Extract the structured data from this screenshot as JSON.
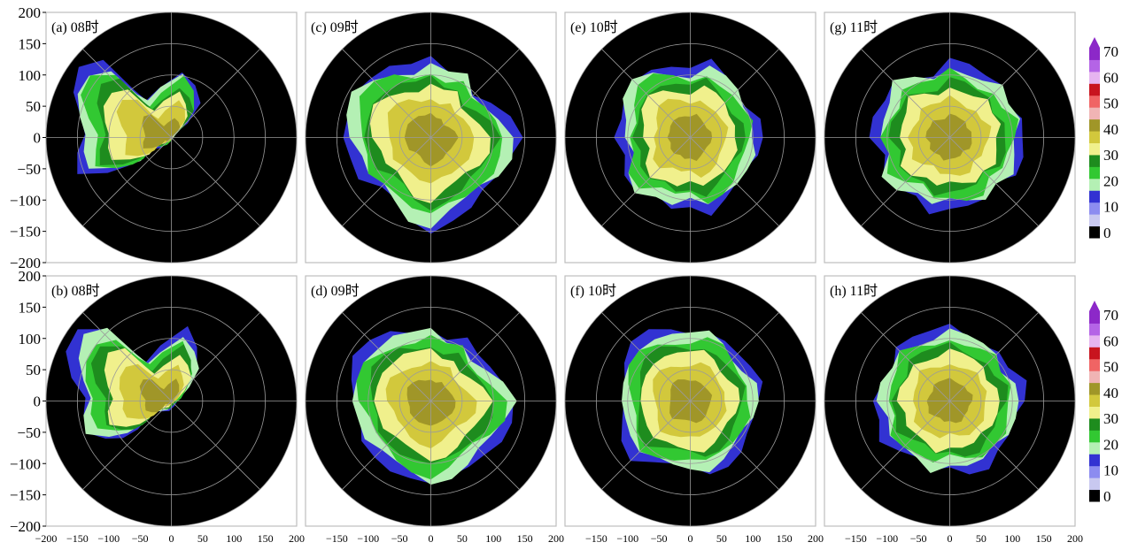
{
  "chart_data": {
    "type": "polar_radar_ppi",
    "rows": 2,
    "columns": 4,
    "axis_ticks": [
      "-200",
      "-150",
      "-100",
      "-50",
      "0",
      "50",
      "100",
      "150",
      "200"
    ],
    "y_ticks": [
      200,
      150,
      100,
      50,
      0,
      -50,
      -100,
      -150,
      -200
    ],
    "x_ticks": [
      -200,
      -150,
      -100,
      -50,
      0,
      50,
      100,
      150,
      200
    ],
    "axis_range": [
      -200,
      200
    ],
    "range_rings": [
      50,
      100,
      150,
      200
    ],
    "spokes_deg": [
      0,
      45,
      90,
      135
    ],
    "panels": [
      {
        "label": "(a) 08时",
        "row": 0,
        "col": 0,
        "echo_extent": [
          45,
          65,
          95,
          110,
          120,
          80,
          55,
          70,
          130,
          150,
          140,
          115,
          100,
          110,
          120,
          85,
          60,
          45,
          30,
          20,
          25,
          30,
          35,
          40
        ],
        "echo_offset": [
          -40,
          5
        ]
      },
      {
        "label": "(c) 09时",
        "row": 0,
        "col": 1,
        "echo_extent": [
          140,
          125,
          110,
          100,
          120,
          110,
          125,
          115,
          130,
          140,
          150,
          140,
          135,
          125,
          130,
          115,
          120,
          140,
          150,
          130,
          125,
          120,
          130,
          135
        ],
        "echo_offset": [
          0,
          0
        ]
      },
      {
        "label": "(e) 10时",
        "row": 0,
        "col": 2,
        "echo_extent": [
          110,
          115,
          105,
          110,
          115,
          125,
          105,
          115,
          130,
          135,
          125,
          110,
          115,
          105,
          125,
          130,
          110,
          115,
          105,
          125,
          115,
          110,
          105,
          110
        ],
        "echo_offset": [
          0,
          0
        ]
      },
      {
        "label": "(g) 11时",
        "row": 0,
        "col": 3,
        "echo_extent": [
          115,
          125,
          110,
          120,
          110,
          115,
          125,
          105,
          115,
          130,
          115,
          120,
          125,
          110,
          130,
          120,
          105,
          120,
          110,
          115,
          120,
          105,
          120,
          115
        ],
        "echo_offset": [
          0,
          0
        ]
      },
      {
        "label": "(b) 08时",
        "row": 1,
        "col": 0,
        "echo_extent": [
          55,
          70,
          95,
          110,
          125,
          85,
          60,
          75,
          130,
          150,
          140,
          120,
          100,
          110,
          115,
          90,
          70,
          50,
          35,
          25,
          25,
          30,
          40,
          45
        ],
        "echo_offset": [
          -40,
          5
        ]
      },
      {
        "label": "(d) 09时",
        "row": 1,
        "col": 1,
        "echo_extent": [
          140,
          120,
          105,
          100,
          115,
          105,
          120,
          115,
          125,
          130,
          140,
          135,
          130,
          120,
          125,
          120,
          125,
          130,
          140,
          130,
          120,
          115,
          125,
          135
        ],
        "echo_offset": [
          0,
          0
        ]
      },
      {
        "label": "(f) 10时",
        "row": 1,
        "col": 2,
        "echo_extent": [
          110,
          115,
          105,
          105,
          115,
          120,
          110,
          115,
          125,
          130,
          125,
          115,
          110,
          110,
          120,
          130,
          115,
          110,
          110,
          120,
          115,
          110,
          105,
          110
        ],
        "echo_offset": [
          0,
          0
        ]
      },
      {
        "label": "(h) 11时",
        "row": 1,
        "col": 3,
        "echo_extent": [
          115,
          120,
          105,
          115,
          110,
          110,
          120,
          110,
          115,
          125,
          110,
          115,
          120,
          110,
          125,
          115,
          110,
          120,
          105,
          115,
          120,
          110,
          115,
          110
        ],
        "echo_offset": [
          0,
          0
        ]
      }
    ],
    "colorbar": {
      "ticks": [
        "70",
        "60",
        "50",
        "40",
        "30",
        "20",
        "10",
        "0"
      ],
      "colors": [
        "#000000",
        "#c8c8f0",
        "#8c8cf0",
        "#3232d2",
        "#b4f0b4",
        "#32c832",
        "#1e8c1e",
        "#f0f08c",
        "#d2c83c",
        "#a09628",
        "#f0b4b4",
        "#f06464",
        "#c8141e",
        "#e6b4f0",
        "#b464e6",
        "#8c28c8"
      ]
    }
  }
}
